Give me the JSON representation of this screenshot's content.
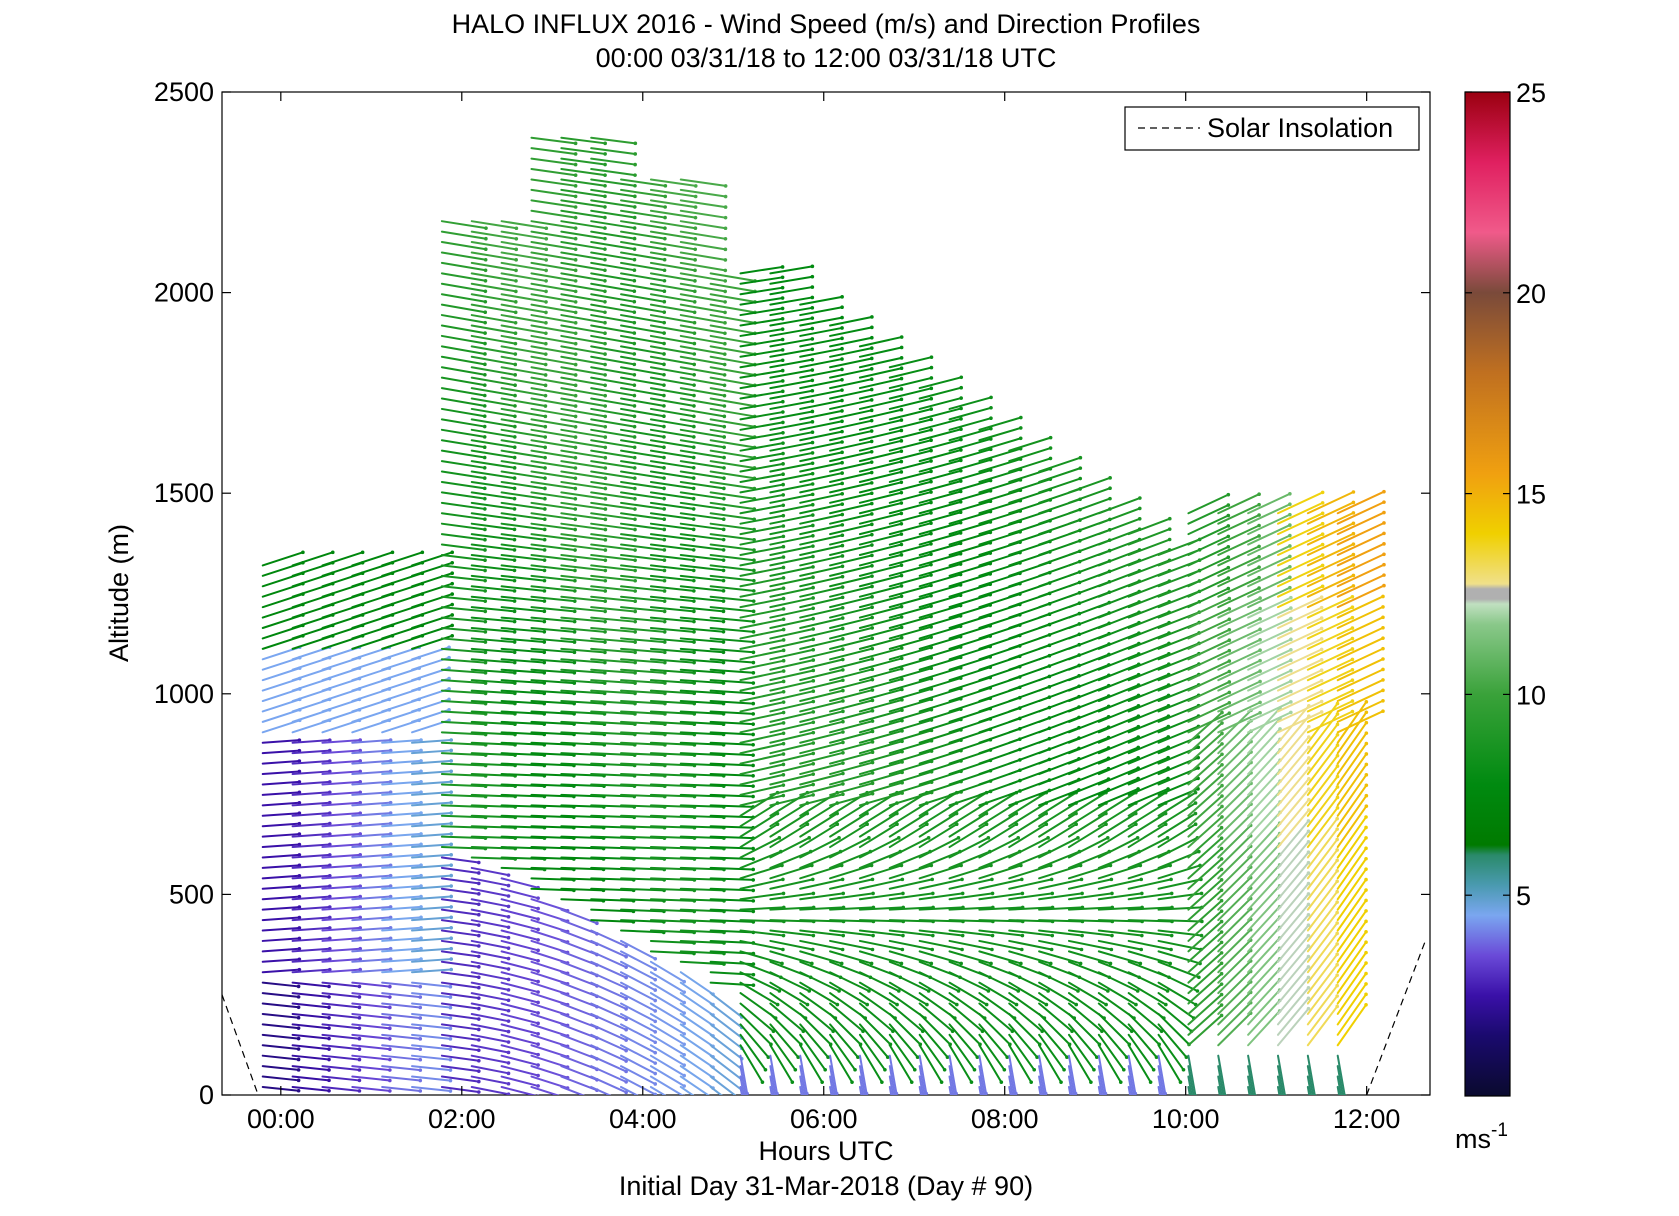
{
  "chart_data": {
    "type": "wind-barb-profile",
    "title": "HALO INFLUX 2016 - Wind Speed (m/s) and Direction Profiles",
    "subtitle": "00:00 03/31/18 to 12:00 03/31/18  UTC",
    "xlabel": "Hours UTC",
    "xlabel2": "Initial Day 31-Mar-2018 (Day # 90)",
    "ylabel": "Altitude (m)",
    "xlim": [
      -0.65,
      12.7
    ],
    "ylim": [
      0,
      2500
    ],
    "x_ticks": [
      0,
      2,
      4,
      6,
      8,
      10,
      12
    ],
    "x_tick_labels": [
      "00:00",
      "02:00",
      "04:00",
      "06:00",
      "08:00",
      "10:00",
      "12:00"
    ],
    "y_ticks": [
      0,
      500,
      1000,
      1500,
      2000,
      2500
    ],
    "y_tick_labels": [
      "0",
      "500",
      "1000",
      "1500",
      "2000",
      "2500"
    ],
    "legend": {
      "label": "Solar Insolation",
      "placement": "top-right",
      "style": "dashed"
    },
    "colorbar": {
      "range": [
        0,
        25
      ],
      "ticks": [
        5,
        10,
        15,
        20,
        25
      ],
      "tick_labels": [
        "5",
        "10",
        "15",
        "20",
        "25"
      ],
      "unit_label": "ms",
      "unit_exponent": "-1"
    },
    "solar_insolation": [
      {
        "x": [
          -0.65,
          -0.25
        ],
        "y": [
          250,
          0
        ]
      },
      {
        "x": [
          12.0,
          12.65
        ],
        "y": [
          0,
          385
        ]
      }
    ],
    "profile_times_hours": [
      -0.2,
      0.13,
      0.46,
      0.79,
      1.12,
      1.45,
      1.78,
      2.11,
      2.44,
      2.77,
      3.1,
      3.43,
      3.76,
      4.09,
      4.42,
      4.75,
      5.08,
      5.41,
      5.74,
      6.07,
      6.4,
      6.73,
      7.06,
      7.39,
      7.72,
      8.05,
      8.38,
      8.71,
      9.04,
      9.37,
      9.7,
      10.03,
      10.36,
      10.69,
      11.02,
      11.35,
      11.68
    ],
    "wind_profile_notes": "Low winds (2-5 m/s, westerly) below ~900 m before 02:00; 7-10 m/s westerly flow up to 2000-2400 m between 02:00 and 05:00; strong southwesterly 11-15 m/s in the lower layer after 10:00."
  }
}
